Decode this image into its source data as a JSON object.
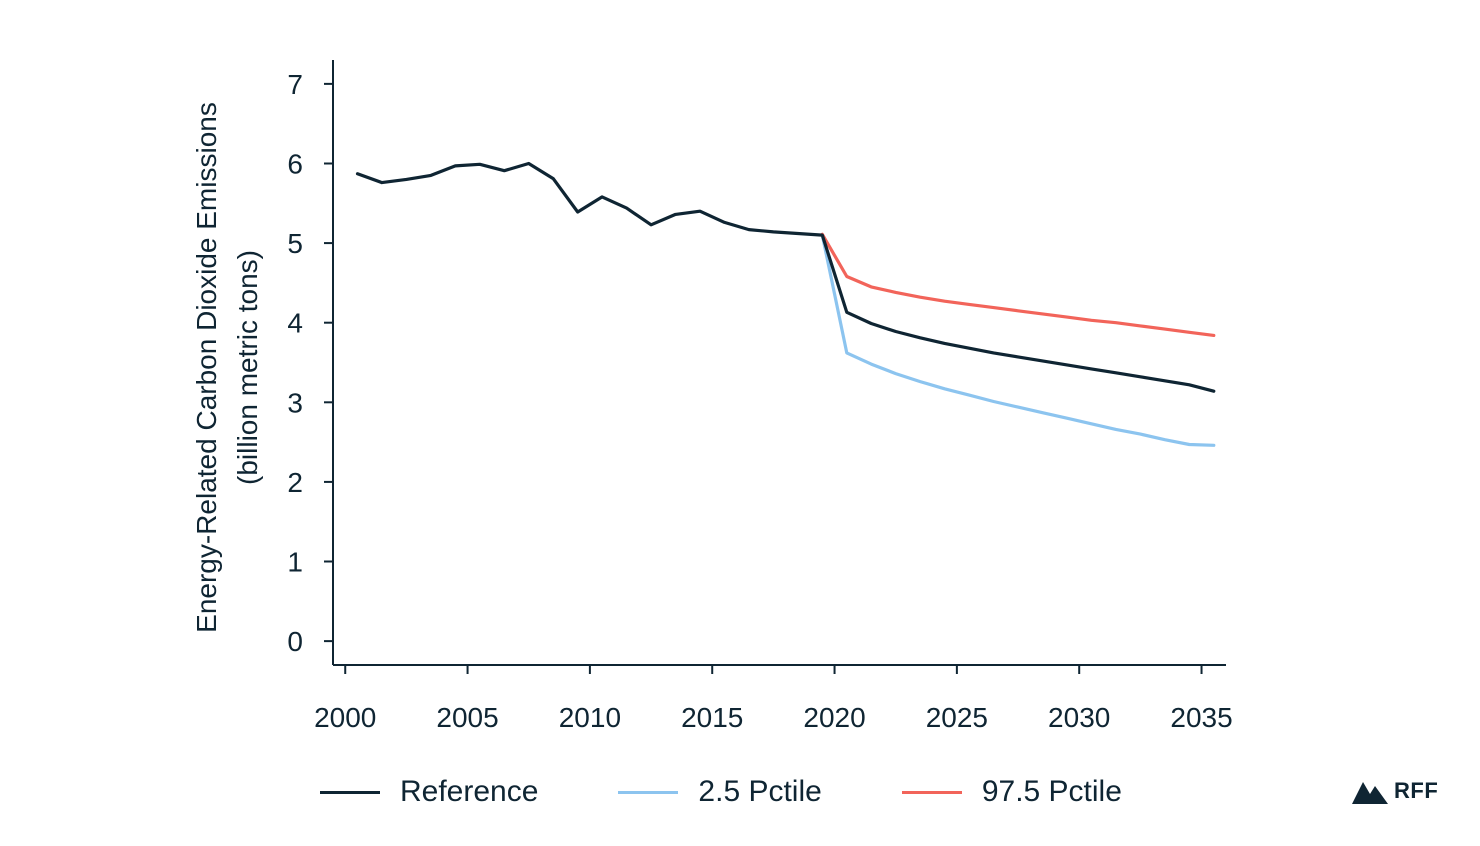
{
  "chart_data": {
    "type": "line",
    "title": "",
    "xlabel": "",
    "ylabel_lines": [
      "Energy-Related Carbon Dioxide Emissions",
      "(billion metric tons)"
    ],
    "xlim": [
      1999.5,
      2036
    ],
    "ylim": [
      -0.3,
      7.3
    ],
    "xticks": [
      2000,
      2005,
      2010,
      2015,
      2020,
      2025,
      2030,
      2035
    ],
    "yticks": [
      0,
      1,
      2,
      3,
      4,
      5,
      6,
      7
    ],
    "grid": false,
    "legend_position": "bottom",
    "series": [
      {
        "name": "Reference",
        "color": "#0f2533",
        "x": [
          2000.5,
          2001.5,
          2002.5,
          2003.5,
          2004.5,
          2005.5,
          2006.5,
          2007.5,
          2008.5,
          2009.5,
          2010.5,
          2011.5,
          2012.5,
          2013.5,
          2014.5,
          2015.5,
          2016.5,
          2017.5,
          2018.5,
          2019.5,
          2020.5,
          2021.5,
          2022.5,
          2023.5,
          2024.5,
          2025.5,
          2026.5,
          2027.5,
          2028.5,
          2029.5,
          2030.5,
          2031.5,
          2032.5,
          2033.5,
          2034.5,
          2035.5
        ],
        "y": [
          5.87,
          5.76,
          5.8,
          5.85,
          5.97,
          5.99,
          5.91,
          6.0,
          5.81,
          5.39,
          5.58,
          5.44,
          5.23,
          5.36,
          5.4,
          5.26,
          5.17,
          5.14,
          5.12,
          5.1,
          4.13,
          3.99,
          3.89,
          3.81,
          3.74,
          3.68,
          3.62,
          3.57,
          3.52,
          3.47,
          3.42,
          3.37,
          3.32,
          3.27,
          3.22,
          3.14
        ]
      },
      {
        "name": "2.5 Pctile",
        "color": "#8cc4ef",
        "x": [
          2019.5,
          2020.5,
          2021.5,
          2022.5,
          2023.5,
          2024.5,
          2025.5,
          2026.5,
          2027.5,
          2028.5,
          2029.5,
          2030.5,
          2031.5,
          2032.5,
          2033.5,
          2034.5,
          2035.5
        ],
        "y": [
          5.1,
          3.62,
          3.48,
          3.36,
          3.26,
          3.17,
          3.09,
          3.01,
          2.94,
          2.87,
          2.8,
          2.73,
          2.66,
          2.6,
          2.53,
          2.47,
          2.46
        ]
      },
      {
        "name": "97.5 Pctile",
        "color": "#f2645a",
        "x": [
          2019.5,
          2020.5,
          2021.5,
          2022.5,
          2023.5,
          2024.5,
          2025.5,
          2026.5,
          2027.5,
          2028.5,
          2029.5,
          2030.5,
          2031.5,
          2032.5,
          2033.5,
          2034.5,
          2035.5
        ],
        "y": [
          5.11,
          4.58,
          4.45,
          4.38,
          4.32,
          4.27,
          4.23,
          4.19,
          4.15,
          4.11,
          4.07,
          4.03,
          4.0,
          3.96,
          3.92,
          3.88,
          3.84
        ]
      }
    ]
  },
  "logo": {
    "text": "RFF",
    "icon": "mountain-icon"
  }
}
